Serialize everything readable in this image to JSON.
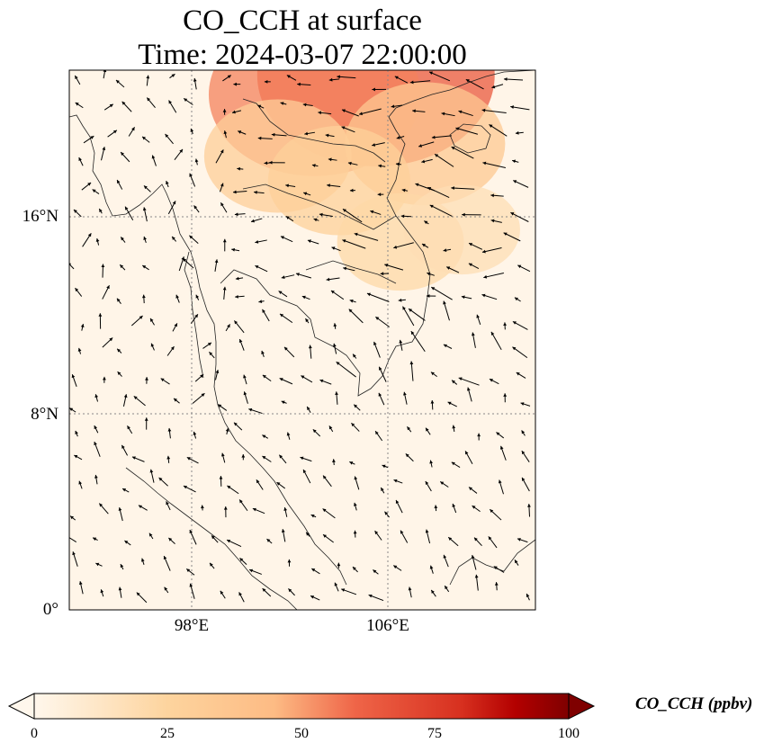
{
  "title": {
    "line1": "CO_CCH at surface",
    "line2": "Time: 2024-03-07 22:00:00"
  },
  "axes": {
    "lat_ticks": [
      "16°N",
      "8°N",
      "0°"
    ],
    "lon_ticks": [
      "98°E",
      "106°E"
    ],
    "lon_range": [
      93,
      112
    ],
    "lat_range": [
      0,
      22
    ],
    "gridlines": "dotted"
  },
  "colorbar": {
    "label": "CO_CCH (ppbv)",
    "ticks": [
      "0",
      "25",
      "50",
      "75",
      "100"
    ],
    "range": [
      0,
      100
    ],
    "colormap": "OrRd",
    "extend": "both"
  },
  "colors": {
    "low": "#fff7ec",
    "mid": "#fdbb84",
    "high": "#d7301f",
    "max": "#7f0000"
  },
  "chart_data": {
    "type": "heatmap",
    "variable": "CO_CCH",
    "units": "ppbv",
    "vmin": 0,
    "vmax": 100,
    "background_value": 3,
    "plumes": [
      {
        "lon": 105.5,
        "lat": 21.8,
        "value": 65
      },
      {
        "lon": 103.0,
        "lat": 21.0,
        "value": 55
      },
      {
        "lon": 107.5,
        "lat": 19.0,
        "value": 35
      },
      {
        "lon": 101.5,
        "lat": 18.5,
        "value": 30
      },
      {
        "lon": 104.0,
        "lat": 17.5,
        "value": 28
      },
      {
        "lon": 106.5,
        "lat": 15.0,
        "value": 22
      },
      {
        "lon": 109.0,
        "lat": 15.5,
        "value": 18
      }
    ],
    "wind_vectors": "quiver field over domain"
  }
}
